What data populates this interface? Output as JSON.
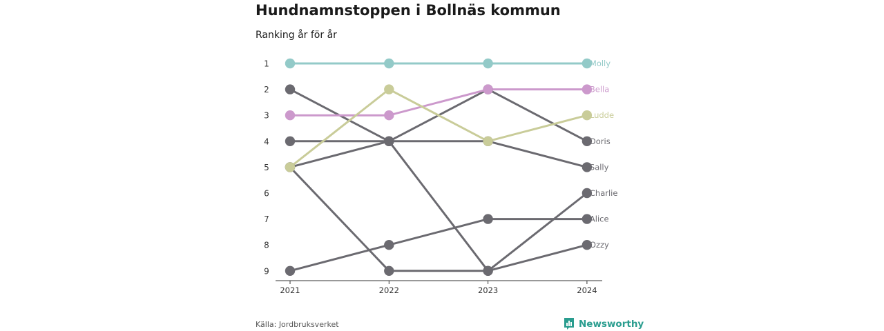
{
  "title": "Hundnamnstoppen i Bollnäs kommun",
  "subtitle": "Ranking år för år",
  "source": "Källa: Jordbruksverket",
  "brand": {
    "name": "Newsworthy",
    "logo_icon": "newsworthy-chart-logo-icon",
    "color": "#2a9d8f"
  },
  "chart_data": {
    "type": "line",
    "subtype": "bump-chart",
    "title": "Hundnamnstoppen i Bollnäs kommun",
    "subtitle": "Ranking år för år",
    "x": [
      "2021",
      "2022",
      "2023",
      "2024"
    ],
    "y_ticks": [
      1,
      2,
      3,
      4,
      5,
      6,
      7,
      8,
      9
    ],
    "y_reversed": true,
    "ylim": [
      1,
      9
    ],
    "grid": false,
    "series": [
      {
        "name": "Molly",
        "values": [
          1,
          1,
          1,
          1
        ],
        "color": "#93cac8"
      },
      {
        "name": "Bella",
        "values": [
          3,
          3,
          2,
          2
        ],
        "color": "#cc99cc"
      },
      {
        "name": "Ludde",
        "values": [
          5,
          2,
          4,
          3
        ],
        "color": "#c9cc99"
      },
      {
        "name": "Doris",
        "values": [
          2,
          4,
          2,
          4
        ],
        "color": "#6b6a70"
      },
      {
        "name": "Sally",
        "values": [
          4,
          4,
          4,
          5
        ],
        "color": "#6b6a70"
      },
      {
        "name": "Charlie",
        "values": [
          5,
          4,
          9,
          6
        ],
        "color": "#6b6a70"
      },
      {
        "name": "Alice",
        "values": [
          9,
          8,
          7,
          7
        ],
        "color": "#6b6a70"
      },
      {
        "name": "Ozzy",
        "values": [
          5,
          9,
          9,
          8
        ],
        "color": "#6b6a70"
      }
    ]
  }
}
